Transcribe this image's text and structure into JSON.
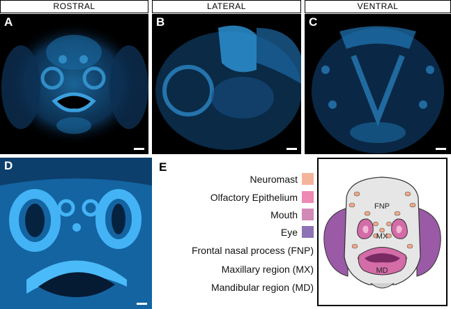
{
  "headers": {
    "rostral": "ROSTRAL",
    "lateral": "LATERAL",
    "ventral": "VENTRAL"
  },
  "panel_labels": {
    "a": "A",
    "b": "B",
    "c": "C",
    "d": "D",
    "e": "E"
  },
  "legend": {
    "items": [
      {
        "label": "Neuromast",
        "color": "#f4b49c"
      },
      {
        "label": "Olfactory Epithelium",
        "color": "#ee88b4"
      },
      {
        "label": "Mouth",
        "color": "#d18ab6"
      },
      {
        "label": "Eye",
        "color": "#8e72b6"
      }
    ],
    "regions": [
      "Frontal nasal process (FNP)",
      "Maxillary region (MX)",
      "Mandibular region (MD)"
    ]
  },
  "diagram": {
    "fnp": "FNP",
    "mx": "MX",
    "md": "MD"
  },
  "colors": {
    "fluor": "#2aa8f0",
    "eye": "#9a5aa6",
    "mouth": "#d46ca8",
    "neuromast": "#f2a888",
    "head": "#e6e6e6"
  }
}
